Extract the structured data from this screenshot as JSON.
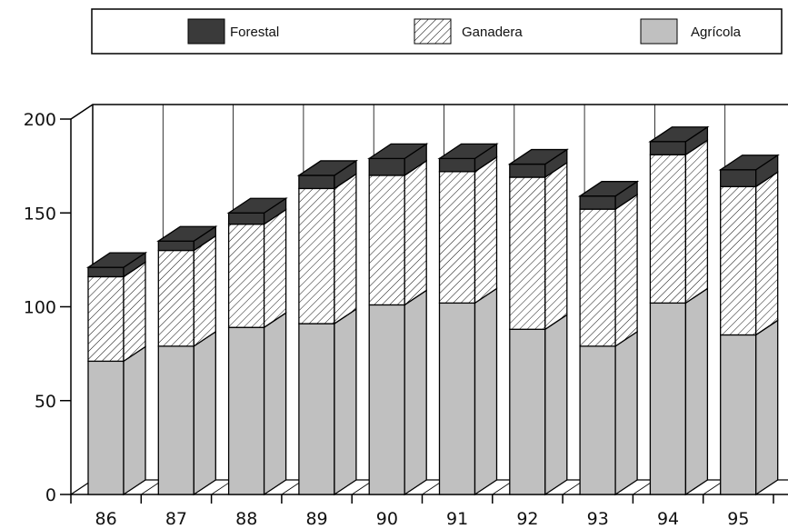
{
  "chart_data": {
    "type": "bar",
    "stacked": true,
    "three_d": true,
    "categories": [
      "86",
      "87",
      "88",
      "89",
      "90",
      "91",
      "92",
      "93",
      "94",
      "95"
    ],
    "series": [
      {
        "name": "Agrícola",
        "values": [
          71,
          79,
          89,
          91,
          101,
          102,
          88,
          79,
          102,
          85
        ],
        "fill": "#c0c0c0"
      },
      {
        "name": "Ganadera",
        "values": [
          45,
          51,
          55,
          72,
          69,
          70,
          81,
          73,
          79,
          79
        ],
        "fill": "hatch"
      },
      {
        "name": "Forestal",
        "values": [
          5,
          5,
          6,
          7,
          9,
          7,
          7,
          7,
          7,
          9
        ],
        "fill": "#3a3a3a"
      }
    ],
    "y_ticks": [
      "0",
      "50",
      "100",
      "150",
      "200"
    ],
    "ylim": [
      0,
      200
    ],
    "legend": {
      "placement": "top",
      "entries": [
        "Forestal",
        "Ganadera",
        "Agrícola"
      ]
    },
    "grid": "vertical lines between categories",
    "title": "",
    "xlabel": "",
    "ylabel": ""
  }
}
